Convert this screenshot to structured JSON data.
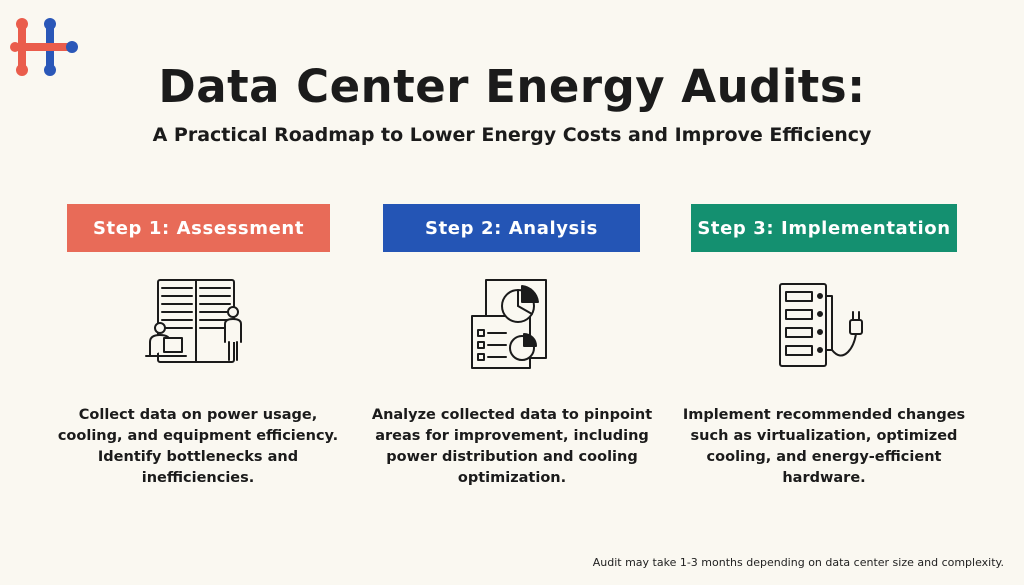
{
  "header": {
    "logo_icon": "hi-logo-icon",
    "title": "Data Center Energy Audits:",
    "subtitle": "A Practical Roadmap to Lower Energy Costs and Improve Efficiency"
  },
  "colors": {
    "background": "#faf8f1",
    "logo_red": "#ea5d4c",
    "logo_blue": "#2a57b8",
    "step1": "#e86b58",
    "step2": "#2455b5",
    "step3": "#149070"
  },
  "steps": [
    {
      "label": "Step 1: Assessment",
      "icon": "server-rack-with-people-icon",
      "description": "Collect data on power usage, cooling, and equipment efficiency. Identify bottlenecks and inefficiencies."
    },
    {
      "label": "Step 2: Analysis",
      "icon": "report-pie-charts-icon",
      "description": "Analyze collected data to pinpoint areas for improvement, including power distribution and cooling optimization."
    },
    {
      "label": "Step 3: Implementation",
      "icon": "server-power-plug-icon",
      "description": "Implement recommended changes such as virtualization, optimized cooling, and energy-efficient hardware."
    }
  ],
  "footnote": "Audit may take 1-3 months depending on data center size and complexity."
}
